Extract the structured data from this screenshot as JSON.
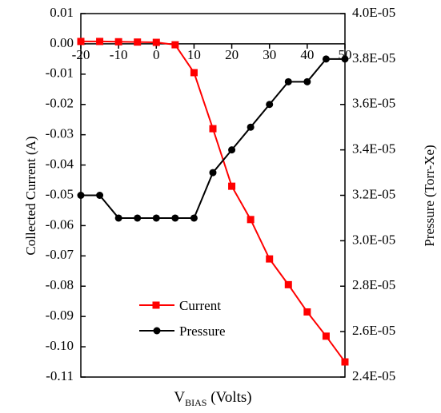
{
  "chart_data": {
    "type": "line",
    "xlabel": "V",
    "xlabel_sub": "BIAS",
    "xlabel_suffix": " (Volts)",
    "ylabel": "Collected Current (A)",
    "y2label": "Pressure (Torr-Xe)",
    "xlim": [
      -20,
      50
    ],
    "ylim": [
      -0.11,
      0.01
    ],
    "y2lim": [
      2.4e-05,
      4e-05
    ],
    "xticks": [
      -20,
      -10,
      0,
      10,
      20,
      30,
      40,
      50
    ],
    "xtick_labels": [
      "-20",
      "-10",
      "0",
      "10",
      "20",
      "30",
      "40",
      "50"
    ],
    "yticks": [
      0.01,
      0.0,
      -0.01,
      -0.02,
      -0.03,
      -0.04,
      -0.05,
      -0.06,
      -0.07,
      -0.08,
      -0.09,
      -0.1,
      -0.11
    ],
    "ytick_labels": [
      "0.01",
      "0.00",
      "-0.01",
      "-0.02",
      "-0.03",
      "-0.04",
      "-0.05",
      "-0.06",
      "-0.07",
      "-0.08",
      "-0.09",
      "-0.10",
      "-0.11"
    ],
    "y2ticks": [
      4e-05,
      3.8e-05,
      3.6e-05,
      3.4e-05,
      3.2e-05,
      3e-05,
      2.8e-05,
      2.6e-05,
      2.4e-05
    ],
    "y2tick_labels": [
      "4.0E-05",
      "3.8E-05",
      "3.6E-05",
      "3.4E-05",
      "3.2E-05",
      "3.0E-05",
      "2.8E-05",
      "2.6E-05",
      "2.4E-05"
    ],
    "x": [
      -20,
      -15,
      -10,
      -5,
      0,
      5,
      10,
      15,
      20,
      25,
      30,
      35,
      40,
      45,
      50
    ],
    "series": [
      {
        "name": "Current",
        "axis": "left",
        "color": "#ff0000",
        "marker": "square",
        "values": [
          0.0008,
          0.0008,
          0.0007,
          0.0006,
          0.0005,
          -0.0003,
          -0.0095,
          -0.028,
          -0.047,
          -0.058,
          -0.071,
          -0.0795,
          -0.0885,
          -0.0965,
          -0.105
        ]
      },
      {
        "name": "Pressure",
        "axis": "right",
        "color": "#000000",
        "marker": "circle",
        "values": [
          3.2e-05,
          3.2e-05,
          3.1e-05,
          3.1e-05,
          3.1e-05,
          3.1e-05,
          3.1e-05,
          3.3e-05,
          3.4e-05,
          3.5e-05,
          3.6e-05,
          3.7e-05,
          3.7e-05,
          3.8e-05,
          3.8e-05
        ]
      }
    ],
    "legend_position": "lower-left",
    "grid": false
  }
}
